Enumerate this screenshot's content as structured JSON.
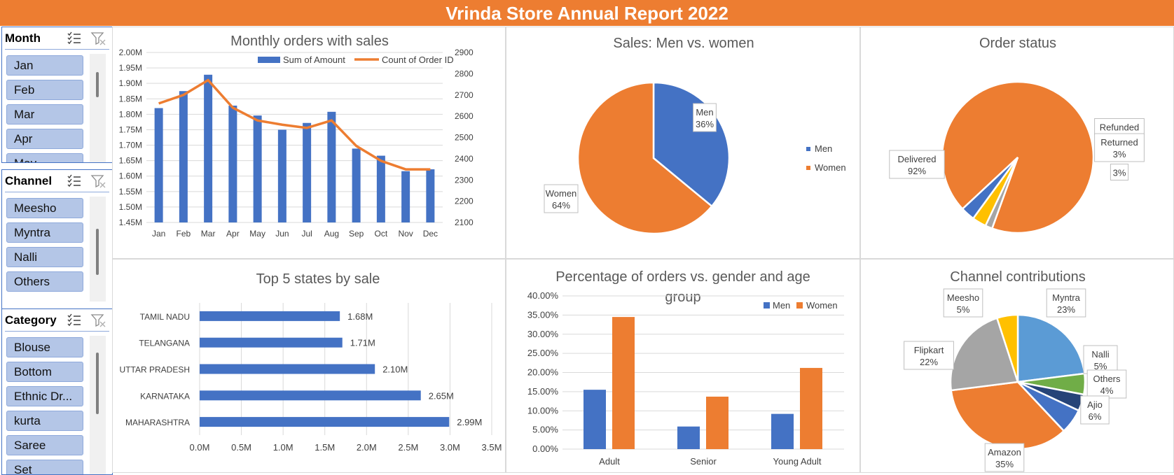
{
  "header": {
    "title": "Vrinda Store Annual Report 2022"
  },
  "slicers": {
    "month": {
      "title": "Month",
      "items": [
        "Jan",
        "Feb",
        "Mar",
        "Apr",
        "May"
      ]
    },
    "channel": {
      "title": "Channel",
      "items": [
        "Meesho",
        "Myntra",
        "Nalli",
        "Others"
      ]
    },
    "category": {
      "title": "Category",
      "items": [
        "Blouse",
        "Bottom",
        "Ethnic Dr...",
        "kurta",
        "Saree",
        "Set"
      ]
    }
  },
  "colors": {
    "blue": "#4472C4",
    "orange": "#ED7D31",
    "grey": "#A5A5A5",
    "yellow": "#FFC000",
    "lightblue": "#5B9BD5",
    "green": "#70AD47",
    "navy": "#264478"
  },
  "chart_data": [
    {
      "id": "monthly",
      "type": "bar",
      "title": "Monthly orders with sales",
      "categories": [
        "Jan",
        "Feb",
        "Mar",
        "Apr",
        "May",
        "Jun",
        "Jul",
        "Aug",
        "Sep",
        "Oct",
        "Nov",
        "Dec"
      ],
      "series": [
        {
          "name": "Sum of Amount",
          "values": [
            1.82,
            1.875,
            1.928,
            1.828,
            1.796,
            1.75,
            1.772,
            1.808,
            1.689,
            1.666,
            1.616,
            1.622
          ]
        },
        {
          "name": "Count of Order ID",
          "type": "line",
          "axis": "right",
          "values": [
            2660,
            2700,
            2770,
            2640,
            2580,
            2560,
            2545,
            2580,
            2460,
            2390,
            2350,
            2350
          ]
        }
      ],
      "ylim": [
        1.45,
        2.0
      ],
      "yticks": [
        "1.45M",
        "1.50M",
        "1.55M",
        "1.60M",
        "1.65M",
        "1.70M",
        "1.75M",
        "1.80M",
        "1.85M",
        "1.90M",
        "1.95M",
        "2.00M"
      ],
      "y2lim": [
        2100,
        2900
      ],
      "y2ticks": [
        "2100",
        "2200",
        "2300",
        "2400",
        "2500",
        "2600",
        "2700",
        "2800",
        "2900"
      ],
      "legend": "top"
    },
    {
      "id": "gender",
      "type": "pie",
      "title": "Sales: Men vs. women",
      "slices": [
        {
          "name": "Men",
          "value": 36,
          "label": "36%"
        },
        {
          "name": "Women",
          "value": 64,
          "label": "64%"
        }
      ],
      "legend": "right"
    },
    {
      "id": "status",
      "type": "pie",
      "title": "Order status",
      "slices": [
        {
          "name": "Delivered",
          "value": 92,
          "label": "92%"
        },
        {
          "name": "Refunded",
          "value": 1.5,
          "label": ""
        },
        {
          "name": "Returned",
          "value": 3,
          "label": "3%"
        },
        {
          "name": "",
          "value": 3,
          "label": "3%"
        }
      ]
    },
    {
      "id": "states",
      "type": "bar",
      "orientation": "horizontal",
      "title": "Top 5 states by sale",
      "categories": [
        "TAMIL NADU",
        "TELANGANA",
        "UTTAR PRADESH",
        "KARNATAKA",
        "MAHARASHTRA"
      ],
      "values": [
        1.68,
        1.71,
        2.1,
        2.65,
        2.99
      ],
      "labels": [
        "1.68M",
        "1.71M",
        "2.10M",
        "2.65M",
        "2.99M"
      ],
      "xlim": [
        0,
        3.5
      ],
      "xticks": [
        "0.0M",
        "0.5M",
        "1.0M",
        "1.5M",
        "2.0M",
        "2.5M",
        "3.0M",
        "3.5M"
      ]
    },
    {
      "id": "agegroup",
      "type": "bar",
      "title": "Percentage of orders vs. gender and age group",
      "categories": [
        "Adult",
        "Senior",
        "Young Adult"
      ],
      "series": [
        {
          "name": "Men",
          "values": [
            15.5,
            5.9,
            9.2
          ]
        },
        {
          "name": "Women",
          "values": [
            34.5,
            13.7,
            21.2
          ]
        }
      ],
      "ylim": [
        0,
        40
      ],
      "yticks": [
        "0.00%",
        "5.00%",
        "10.00%",
        "15.00%",
        "20.00%",
        "25.00%",
        "30.00%",
        "35.00%",
        "40.00%"
      ],
      "legend": "top-right"
    },
    {
      "id": "channels",
      "type": "pie",
      "title": "Channel contributions",
      "slices": [
        {
          "name": "Myntra",
          "value": 23,
          "label": "23%"
        },
        {
          "name": "Nalli",
          "value": 5,
          "label": "5%"
        },
        {
          "name": "Others",
          "value": 4,
          "label": "4%"
        },
        {
          "name": "Ajio",
          "value": 6,
          "label": "6%"
        },
        {
          "name": "Amazon",
          "value": 35,
          "label": "35%"
        },
        {
          "name": "Flipkart",
          "value": 22,
          "label": "22%"
        },
        {
          "name": "Meesho",
          "value": 5,
          "label": "5%"
        }
      ]
    }
  ]
}
